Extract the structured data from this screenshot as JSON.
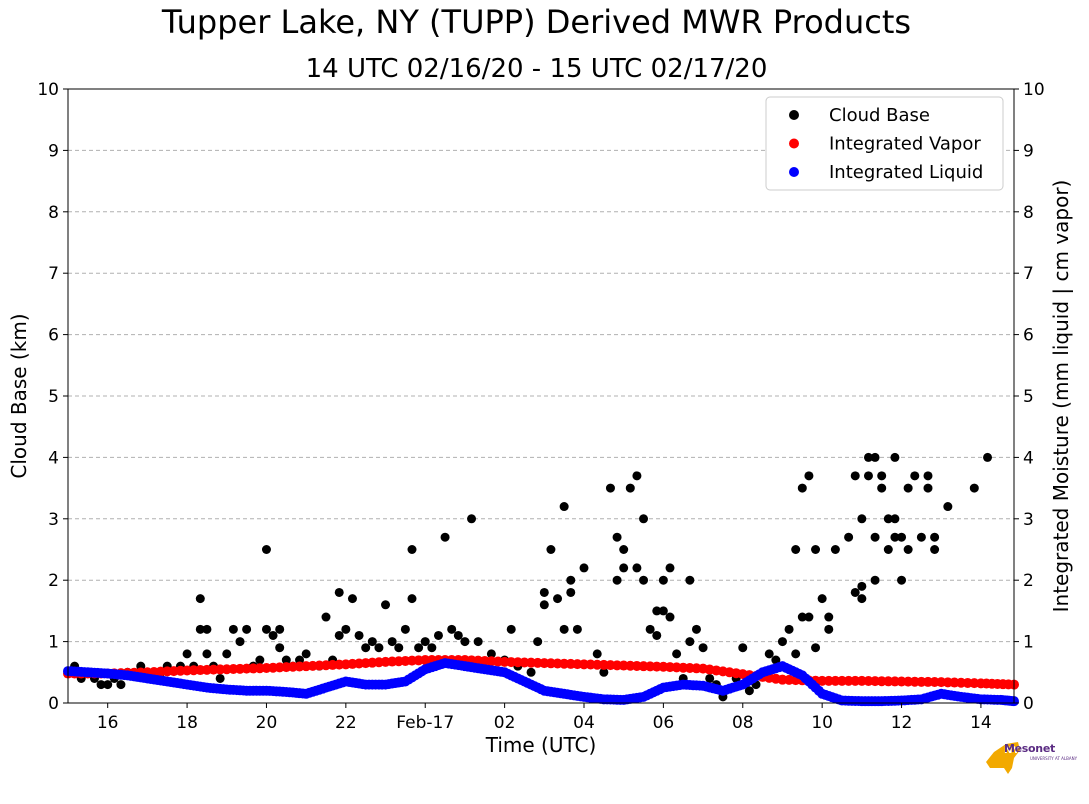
{
  "header": {
    "title": "Tupper Lake, NY (TUPP) Derived MWR Products",
    "subtitle": "14 UTC 02/16/20 - 15 UTC 02/17/20"
  },
  "logo": {
    "text": "Mesonet",
    "subtext": "UNIVERSITY AT ALBANY"
  },
  "colors": {
    "cloud_base": "#000000",
    "integrated_vapor": "#ff0000",
    "integrated_liquid": "#0000ff",
    "grid": "#b0b0b0",
    "logo_gold": "#f2a900",
    "logo_purple": "#5b2c83"
  },
  "chart_data": {
    "type": "scatter",
    "title": "Tupper Lake, NY (TUPP) Derived MWR Products",
    "subtitle": "14 UTC 02/16/20 - 15 UTC 02/17/20",
    "xlabel": "Time (UTC)",
    "ylabel": "Cloud Base (km)",
    "y2label": "Integrated Moisture (mm liquid | cm vapor)",
    "xlim": [
      "2020-02-16 15:00",
      "2020-02-17 14:50"
    ],
    "ylim": [
      0,
      10
    ],
    "y2lim": [
      0,
      10
    ],
    "x_ticks": [
      {
        "t": "2020-02-16 16:00",
        "label": "16"
      },
      {
        "t": "2020-02-16 18:00",
        "label": "18"
      },
      {
        "t": "2020-02-16 20:00",
        "label": "20"
      },
      {
        "t": "2020-02-16 22:00",
        "label": "22"
      },
      {
        "t": "2020-02-17 00:00",
        "label": "Feb-17"
      },
      {
        "t": "2020-02-17 02:00",
        "label": "02"
      },
      {
        "t": "2020-02-17 04:00",
        "label": "04"
      },
      {
        "t": "2020-02-17 06:00",
        "label": "06"
      },
      {
        "t": "2020-02-17 08:00",
        "label": "08"
      },
      {
        "t": "2020-02-17 10:00",
        "label": "10"
      },
      {
        "t": "2020-02-17 12:00",
        "label": "12"
      },
      {
        "t": "2020-02-17 14:00",
        "label": "14"
      }
    ],
    "y_ticks": [
      "0",
      "1",
      "2",
      "3",
      "4",
      "5",
      "6",
      "7",
      "8",
      "9",
      "10"
    ],
    "grid": true,
    "legend_position": "top-right",
    "legend": [
      "Cloud Base",
      "Integrated Vapor",
      "Integrated Liquid"
    ],
    "series": [
      {
        "name": "Cloud Base",
        "type": "scatter",
        "color": "#000000",
        "points": [
          [
            "2020-02-16 15:00",
            0.5
          ],
          [
            "2020-02-16 15:10",
            0.6
          ],
          [
            "2020-02-16 15:20",
            0.4
          ],
          [
            "2020-02-16 15:30",
            0.5
          ],
          [
            "2020-02-16 15:40",
            0.4
          ],
          [
            "2020-02-16 15:50",
            0.3
          ],
          [
            "2020-02-16 16:00",
            0.3
          ],
          [
            "2020-02-16 16:10",
            0.4
          ],
          [
            "2020-02-16 16:20",
            0.3
          ],
          [
            "2020-02-16 16:30",
            0.5
          ],
          [
            "2020-02-16 16:50",
            0.6
          ],
          [
            "2020-02-16 17:00",
            0.5
          ],
          [
            "2020-02-16 17:20",
            0.4
          ],
          [
            "2020-02-16 17:30",
            0.6
          ],
          [
            "2020-02-16 17:50",
            0.6
          ],
          [
            "2020-02-16 18:00",
            0.8
          ],
          [
            "2020-02-16 18:10",
            0.6
          ],
          [
            "2020-02-16 18:20",
            1.7
          ],
          [
            "2020-02-16 18:20",
            1.2
          ],
          [
            "2020-02-16 18:30",
            1.2
          ],
          [
            "2020-02-16 18:30",
            0.8
          ],
          [
            "2020-02-16 18:40",
            0.6
          ],
          [
            "2020-02-16 18:50",
            0.4
          ],
          [
            "2020-02-16 19:00",
            0.8
          ],
          [
            "2020-02-16 19:10",
            1.2
          ],
          [
            "2020-02-16 19:20",
            1.0
          ],
          [
            "2020-02-16 19:30",
            1.2
          ],
          [
            "2020-02-16 19:40",
            0.6
          ],
          [
            "2020-02-16 19:50",
            0.7
          ],
          [
            "2020-02-16 20:00",
            1.2
          ],
          [
            "2020-02-16 20:00",
            2.5
          ],
          [
            "2020-02-16 20:10",
            1.1
          ],
          [
            "2020-02-16 20:20",
            1.2
          ],
          [
            "2020-02-16 20:20",
            0.9
          ],
          [
            "2020-02-16 20:30",
            0.7
          ],
          [
            "2020-02-16 20:40",
            0.6
          ],
          [
            "2020-02-16 20:50",
            0.7
          ],
          [
            "2020-02-16 21:00",
            0.8
          ],
          [
            "2020-02-16 21:20",
            0.6
          ],
          [
            "2020-02-16 21:30",
            1.4
          ],
          [
            "2020-02-16 21:40",
            0.7
          ],
          [
            "2020-02-16 21:50",
            1.1
          ],
          [
            "2020-02-16 21:50",
            1.8
          ],
          [
            "2020-02-16 22:00",
            1.2
          ],
          [
            "2020-02-16 22:10",
            1.7
          ],
          [
            "2020-02-16 22:20",
            1.1
          ],
          [
            "2020-02-16 22:30",
            0.9
          ],
          [
            "2020-02-16 22:40",
            1.0
          ],
          [
            "2020-02-16 22:50",
            0.9
          ],
          [
            "2020-02-16 23:00",
            1.6
          ],
          [
            "2020-02-16 23:10",
            1.0
          ],
          [
            "2020-02-16 23:20",
            0.9
          ],
          [
            "2020-02-16 23:30",
            1.2
          ],
          [
            "2020-02-16 23:40",
            2.5
          ],
          [
            "2020-02-16 23:40",
            1.7
          ],
          [
            "2020-02-16 23:50",
            0.9
          ],
          [
            "2020-02-17 00:00",
            1.0
          ],
          [
            "2020-02-17 00:10",
            0.9
          ],
          [
            "2020-02-17 00:20",
            1.1
          ],
          [
            "2020-02-17 00:30",
            2.7
          ],
          [
            "2020-02-17 00:40",
            1.2
          ],
          [
            "2020-02-17 00:50",
            1.1
          ],
          [
            "2020-02-17 01:00",
            1.0
          ],
          [
            "2020-02-17 01:10",
            3.0
          ],
          [
            "2020-02-17 01:20",
            1.0
          ],
          [
            "2020-02-17 01:40",
            0.8
          ],
          [
            "2020-02-17 02:00",
            0.7
          ],
          [
            "2020-02-17 02:10",
            1.2
          ],
          [
            "2020-02-17 02:20",
            0.6
          ],
          [
            "2020-02-17 02:40",
            0.5
          ],
          [
            "2020-02-17 02:50",
            1.0
          ],
          [
            "2020-02-17 03:00",
            1.8
          ],
          [
            "2020-02-17 03:00",
            1.6
          ],
          [
            "2020-02-17 03:10",
            2.5
          ],
          [
            "2020-02-17 03:20",
            1.7
          ],
          [
            "2020-02-17 03:30",
            3.2
          ],
          [
            "2020-02-17 03:30",
            1.2
          ],
          [
            "2020-02-17 03:40",
            2.0
          ],
          [
            "2020-02-17 03:40",
            1.8
          ],
          [
            "2020-02-17 03:50",
            1.2
          ],
          [
            "2020-02-17 04:00",
            2.2
          ],
          [
            "2020-02-17 04:20",
            0.8
          ],
          [
            "2020-02-17 04:30",
            0.5
          ],
          [
            "2020-02-17 04:40",
            3.5
          ],
          [
            "2020-02-17 04:50",
            2.7
          ],
          [
            "2020-02-17 04:50",
            2.0
          ],
          [
            "2020-02-17 05:00",
            2.2
          ],
          [
            "2020-02-17 05:00",
            2.5
          ],
          [
            "2020-02-17 05:10",
            3.5
          ],
          [
            "2020-02-17 05:20",
            3.7
          ],
          [
            "2020-02-17 05:20",
            2.2
          ],
          [
            "2020-02-17 05:30",
            3.0
          ],
          [
            "2020-02-17 05:30",
            2.0
          ],
          [
            "2020-02-17 05:40",
            1.2
          ],
          [
            "2020-02-17 05:50",
            1.5
          ],
          [
            "2020-02-17 05:50",
            1.1
          ],
          [
            "2020-02-17 06:00",
            1.5
          ],
          [
            "2020-02-17 06:00",
            2.0
          ],
          [
            "2020-02-17 06:10",
            1.4
          ],
          [
            "2020-02-17 06:10",
            2.2
          ],
          [
            "2020-02-17 06:20",
            0.8
          ],
          [
            "2020-02-17 06:30",
            0.4
          ],
          [
            "2020-02-17 06:40",
            2.0
          ],
          [
            "2020-02-17 06:40",
            1.0
          ],
          [
            "2020-02-17 06:50",
            1.2
          ],
          [
            "2020-02-17 07:00",
            0.9
          ],
          [
            "2020-02-17 07:10",
            0.4
          ],
          [
            "2020-02-17 07:20",
            0.3
          ],
          [
            "2020-02-17 07:30",
            0.1
          ],
          [
            "2020-02-17 07:50",
            0.4
          ],
          [
            "2020-02-17 08:00",
            0.9
          ],
          [
            "2020-02-17 08:10",
            0.2
          ],
          [
            "2020-02-17 08:20",
            0.3
          ],
          [
            "2020-02-17 08:30",
            0.5
          ],
          [
            "2020-02-17 08:40",
            0.8
          ],
          [
            "2020-02-17 08:50",
            0.7
          ],
          [
            "2020-02-17 09:00",
            1.0
          ],
          [
            "2020-02-17 09:10",
            1.2
          ],
          [
            "2020-02-17 09:20",
            0.8
          ],
          [
            "2020-02-17 09:20",
            2.5
          ],
          [
            "2020-02-17 09:30",
            1.4
          ],
          [
            "2020-02-17 09:30",
            3.5
          ],
          [
            "2020-02-17 09:40",
            3.7
          ],
          [
            "2020-02-17 09:40",
            1.4
          ],
          [
            "2020-02-17 09:50",
            2.5
          ],
          [
            "2020-02-17 09:50",
            0.9
          ],
          [
            "2020-02-17 10:00",
            1.7
          ],
          [
            "2020-02-17 10:10",
            1.4
          ],
          [
            "2020-02-17 10:10",
            1.2
          ],
          [
            "2020-02-17 10:20",
            2.5
          ],
          [
            "2020-02-17 10:40",
            2.7
          ],
          [
            "2020-02-17 10:50",
            1.8
          ],
          [
            "2020-02-17 10:50",
            3.7
          ],
          [
            "2020-02-17 11:00",
            1.7
          ],
          [
            "2020-02-17 11:00",
            1.9
          ],
          [
            "2020-02-17 11:00",
            3.0
          ],
          [
            "2020-02-17 11:10",
            4.0
          ],
          [
            "2020-02-17 11:10",
            3.7
          ],
          [
            "2020-02-17 11:20",
            2.0
          ],
          [
            "2020-02-17 11:20",
            2.7
          ],
          [
            "2020-02-17 11:20",
            4.0
          ],
          [
            "2020-02-17 11:30",
            3.7
          ],
          [
            "2020-02-17 11:30",
            3.5
          ],
          [
            "2020-02-17 11:40",
            2.5
          ],
          [
            "2020-02-17 11:40",
            3.0
          ],
          [
            "2020-02-17 11:50",
            2.7
          ],
          [
            "2020-02-17 11:50",
            4.0
          ],
          [
            "2020-02-17 11:50",
            3.0
          ],
          [
            "2020-02-17 12:00",
            2.0
          ],
          [
            "2020-02-17 12:00",
            2.7
          ],
          [
            "2020-02-17 12:10",
            2.5
          ],
          [
            "2020-02-17 12:10",
            3.5
          ],
          [
            "2020-02-17 12:20",
            3.7
          ],
          [
            "2020-02-17 12:30",
            2.7
          ],
          [
            "2020-02-17 12:40",
            3.5
          ],
          [
            "2020-02-17 12:40",
            3.7
          ],
          [
            "2020-02-17 12:50",
            2.5
          ],
          [
            "2020-02-17 12:50",
            2.7
          ],
          [
            "2020-02-17 13:10",
            3.2
          ],
          [
            "2020-02-17 13:50",
            3.5
          ],
          [
            "2020-02-17 14:10",
            4.0
          ]
        ]
      },
      {
        "name": "Integrated Vapor",
        "type": "scatter",
        "color": "#ff0000",
        "points": [
          [
            "2020-02-16 15:00",
            0.48
          ],
          [
            "2020-02-16 16:00",
            0.48
          ],
          [
            "2020-02-16 17:00",
            0.5
          ],
          [
            "2020-02-16 18:00",
            0.53
          ],
          [
            "2020-02-16 19:00",
            0.55
          ],
          [
            "2020-02-16 20:00",
            0.57
          ],
          [
            "2020-02-16 21:00",
            0.6
          ],
          [
            "2020-02-16 22:00",
            0.63
          ],
          [
            "2020-02-16 23:00",
            0.67
          ],
          [
            "2020-02-17 00:00",
            0.7
          ],
          [
            "2020-02-17 01:00",
            0.7
          ],
          [
            "2020-02-17 02:00",
            0.67
          ],
          [
            "2020-02-17 03:00",
            0.65
          ],
          [
            "2020-02-17 04:00",
            0.63
          ],
          [
            "2020-02-17 05:00",
            0.61
          ],
          [
            "2020-02-17 06:00",
            0.59
          ],
          [
            "2020-02-17 07:00",
            0.56
          ],
          [
            "2020-02-17 08:00",
            0.47
          ],
          [
            "2020-02-17 09:00",
            0.38
          ],
          [
            "2020-02-17 10:00",
            0.36
          ],
          [
            "2020-02-17 11:00",
            0.36
          ],
          [
            "2020-02-17 12:00",
            0.35
          ],
          [
            "2020-02-17 13:00",
            0.34
          ],
          [
            "2020-02-17 14:00",
            0.32
          ],
          [
            "2020-02-17 14:50",
            0.3
          ]
        ]
      },
      {
        "name": "Integrated Liquid",
        "type": "scatter",
        "color": "#0000ff",
        "points": [
          [
            "2020-02-16 15:00",
            0.52
          ],
          [
            "2020-02-16 15:30",
            0.5
          ],
          [
            "2020-02-16 16:00",
            0.48
          ],
          [
            "2020-02-16 16:30",
            0.45
          ],
          [
            "2020-02-16 17:00",
            0.4
          ],
          [
            "2020-02-16 17:30",
            0.35
          ],
          [
            "2020-02-16 18:00",
            0.3
          ],
          [
            "2020-02-16 18:30",
            0.25
          ],
          [
            "2020-02-16 19:00",
            0.22
          ],
          [
            "2020-02-16 19:30",
            0.2
          ],
          [
            "2020-02-16 20:00",
            0.2
          ],
          [
            "2020-02-16 20:30",
            0.18
          ],
          [
            "2020-02-16 21:00",
            0.15
          ],
          [
            "2020-02-16 21:30",
            0.25
          ],
          [
            "2020-02-16 22:00",
            0.35
          ],
          [
            "2020-02-16 22:30",
            0.3
          ],
          [
            "2020-02-16 23:00",
            0.3
          ],
          [
            "2020-02-16 23:30",
            0.35
          ],
          [
            "2020-02-17 00:00",
            0.55
          ],
          [
            "2020-02-17 00:30",
            0.65
          ],
          [
            "2020-02-17 01:00",
            0.6
          ],
          [
            "2020-02-17 01:30",
            0.55
          ],
          [
            "2020-02-17 02:00",
            0.5
          ],
          [
            "2020-02-17 02:30",
            0.35
          ],
          [
            "2020-02-17 03:00",
            0.2
          ],
          [
            "2020-02-17 03:30",
            0.15
          ],
          [
            "2020-02-17 04:00",
            0.1
          ],
          [
            "2020-02-17 04:30",
            0.06
          ],
          [
            "2020-02-17 05:00",
            0.05
          ],
          [
            "2020-02-17 05:30",
            0.1
          ],
          [
            "2020-02-17 06:00",
            0.25
          ],
          [
            "2020-02-17 06:30",
            0.3
          ],
          [
            "2020-02-17 07:00",
            0.28
          ],
          [
            "2020-02-17 07:30",
            0.2
          ],
          [
            "2020-02-17 08:00",
            0.3
          ],
          [
            "2020-02-17 08:30",
            0.5
          ],
          [
            "2020-02-17 09:00",
            0.6
          ],
          [
            "2020-02-17 09:30",
            0.45
          ],
          [
            "2020-02-17 10:00",
            0.15
          ],
          [
            "2020-02-17 10:30",
            0.04
          ],
          [
            "2020-02-17 11:00",
            0.03
          ],
          [
            "2020-02-17 11:30",
            0.03
          ],
          [
            "2020-02-17 12:00",
            0.04
          ],
          [
            "2020-02-17 12:30",
            0.06
          ],
          [
            "2020-02-17 13:00",
            0.15
          ],
          [
            "2020-02-17 13:30",
            0.1
          ],
          [
            "2020-02-17 14:00",
            0.06
          ],
          [
            "2020-02-17 14:30",
            0.05
          ],
          [
            "2020-02-17 14:50",
            0.03
          ]
        ]
      }
    ]
  }
}
